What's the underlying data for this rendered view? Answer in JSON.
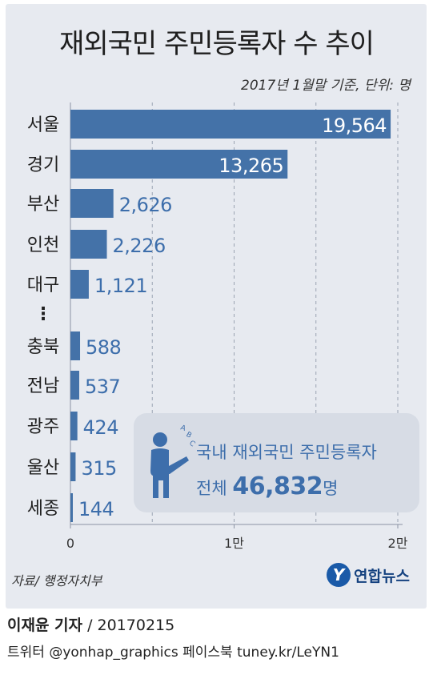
{
  "title": "재외국민 주민등록자 수 추이",
  "subtitle": "2017년 1월말 기준, 단위: 명",
  "chart_data": {
    "type": "bar",
    "orientation": "horizontal",
    "categories": [
      "서울",
      "경기",
      "부산",
      "인천",
      "대구",
      "충북",
      "전남",
      "광주",
      "울산",
      "세종"
    ],
    "values": [
      19564,
      13265,
      2626,
      2226,
      1121,
      588,
      537,
      424,
      315,
      144
    ],
    "value_labels": [
      "19,564",
      "13,265",
      "2,626",
      "2,226",
      "1,121",
      "588",
      "537",
      "424",
      "315",
      "144"
    ],
    "gap_marker": "⋮",
    "x_ticks": [
      0,
      10000,
      20000
    ],
    "x_tick_labels": [
      "0",
      "1만",
      "2만"
    ],
    "xlim": [
      0,
      20000
    ],
    "grid": "dashed vertical",
    "bar_color": "#4472a8"
  },
  "callout": {
    "line1": "국내 재외국민 주민등록자",
    "line2_prefix": "전체",
    "total": "46,832",
    "unit": "명",
    "icon": "person-presenting-icon",
    "icon_letters": [
      "A",
      "B",
      "C"
    ]
  },
  "source": "자료/ 행정자치부",
  "logo_text": "연합뉴스",
  "logo_mark": "Y",
  "byline_name": "이재윤 기자",
  "byline_date": "/ 20170215",
  "social": "트위터 @yonhap_graphics  페이스북 tuney.kr/LeYN1"
}
